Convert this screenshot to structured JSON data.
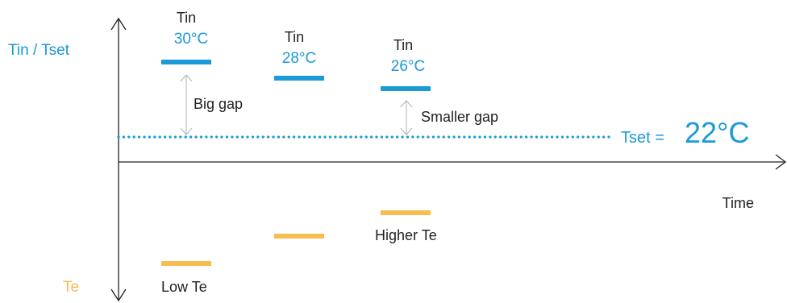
{
  "colors": {
    "blue": "#1a9ad6",
    "orange": "#f7bd50",
    "axis": "#222222",
    "gap_arrow": "#b8b8b8"
  },
  "axes": {
    "upper_label": "Tin / Tset",
    "lower_label": "Te",
    "x_label": "Time"
  },
  "tset_line": {
    "label": "Tset =",
    "value": "22°C"
  },
  "tin_markers": [
    {
      "label": "Tin",
      "value": "30°C"
    },
    {
      "label": "Tin",
      "value": "28°C"
    },
    {
      "label": "Tin",
      "value": "26°C"
    }
  ],
  "gaps": [
    {
      "label": "Big gap"
    },
    {
      "label": "Smaller gap"
    }
  ],
  "te_markers": [
    {
      "label": "Low Te"
    },
    {
      "label": ""
    },
    {
      "label": "Higher Te"
    }
  ]
}
